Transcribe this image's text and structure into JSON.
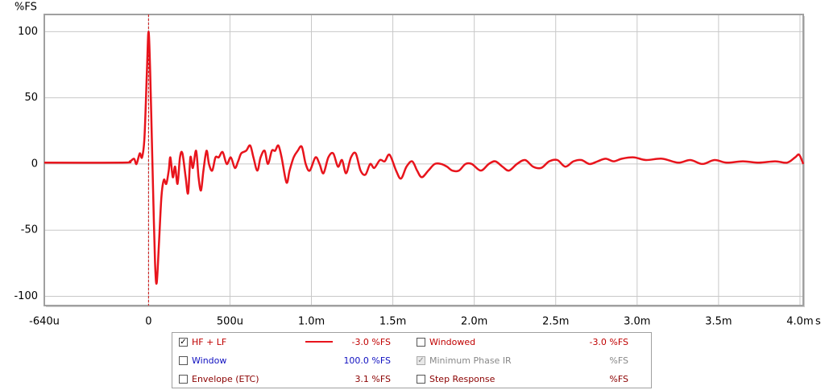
{
  "chart_data": {
    "type": "line",
    "y_label": "%FS",
    "x_unit": "s",
    "xlim": [
      -0.64,
      4.02
    ],
    "ylim": [
      -107,
      113
    ],
    "xticks": [
      {
        "value": -0.64,
        "label": "-640u"
      },
      0,
      {
        "value": 0.5,
        "label": "500u"
      },
      {
        "value": 1,
        "label": "1.0m"
      },
      {
        "value": 1.5,
        "label": "1.5m"
      },
      {
        "value": 2,
        "label": "2.0m"
      },
      {
        "value": 2.5,
        "label": "2.5m"
      },
      {
        "value": 3,
        "label": "3.0m"
      },
      {
        "value": 3.5,
        "label": "3.5m"
      },
      {
        "value": 4,
        "label": "4.0m"
      }
    ],
    "yticks": [
      -100,
      -50,
      0,
      50,
      100
    ],
    "grid": true,
    "cursor_x": 0,
    "cursor_color": "#d01010",
    "series": [
      {
        "name": "HF + LF",
        "color": "#e8141c",
        "x": [
          -0.64,
          -0.163,
          -0.114,
          -0.089,
          -0.074,
          -0.054,
          -0.04,
          -0.025,
          -0.01,
          0,
          0.01,
          0.02,
          0.03,
          0.04,
          0.05,
          0.064,
          0.079,
          0.094,
          0.109,
          0.124,
          0.134,
          0.149,
          0.163,
          0.178,
          0.193,
          0.208,
          0.228,
          0.243,
          0.257,
          0.272,
          0.292,
          0.307,
          0.322,
          0.337,
          0.356,
          0.371,
          0.391,
          0.411,
          0.431,
          0.455,
          0.48,
          0.505,
          0.53,
          0.55,
          0.569,
          0.599,
          0.624,
          0.644,
          0.668,
          0.688,
          0.713,
          0.733,
          0.757,
          0.777,
          0.797,
          0.817,
          0.847,
          0.866,
          0.891,
          0.916,
          0.941,
          0.965,
          0.99,
          1.025,
          1.05,
          1.074,
          1.104,
          1.134,
          1.163,
          1.188,
          1.213,
          1.243,
          1.272,
          1.302,
          1.332,
          1.361,
          1.386,
          1.421,
          1.45,
          1.48,
          1.52,
          1.55,
          1.584,
          1.619,
          1.649,
          1.678,
          1.718,
          1.757,
          1.797,
          1.832,
          1.866,
          1.906,
          1.946,
          1.985,
          2.04,
          2.089,
          2.129,
          2.173,
          2.213,
          2.262,
          2.312,
          2.361,
          2.411,
          2.46,
          2.51,
          2.559,
          2.609,
          2.658,
          2.708,
          2.757,
          2.807,
          2.856,
          2.906,
          2.98,
          3.054,
          3.153,
          3.252,
          3.327,
          3.401,
          3.475,
          3.55,
          3.649,
          3.748,
          3.847,
          3.921,
          3.97,
          3.995,
          4.02
        ],
        "values": [
          1,
          1,
          2,
          4,
          0,
          8,
          5,
          20,
          70,
          100,
          70,
          20,
          -30,
          -75,
          -90,
          -60,
          -25,
          -12,
          -15,
          -5,
          5,
          -10,
          -2,
          -15,
          5,
          8,
          -10,
          -22,
          5,
          -3,
          10,
          -10,
          -20,
          -5,
          10,
          0,
          -5,
          5,
          5,
          9,
          0,
          5,
          -3,
          2,
          8,
          10,
          14,
          5,
          -5,
          5,
          10,
          0,
          10,
          10,
          14,
          5,
          -14,
          -5,
          5,
          10,
          13,
          0,
          -5,
          5,
          0,
          -7,
          5,
          8,
          -2,
          3,
          -7,
          5,
          8,
          -5,
          -8,
          0,
          -3,
          3,
          2,
          7,
          -5,
          -11,
          -2,
          2,
          -5,
          -10,
          -5,
          0,
          0,
          -2,
          -5,
          -5,
          0,
          0,
          -5,
          0,
          2,
          -2,
          -5,
          0,
          3,
          -2,
          -3,
          2,
          3,
          -2,
          2,
          3,
          0,
          2,
          4,
          2,
          4,
          5,
          3,
          4,
          1,
          3,
          0,
          3,
          1,
          2,
          1,
          2,
          1,
          5,
          7,
          0
        ]
      }
    ]
  },
  "legend": {
    "items": [
      {
        "name": "HF + LF",
        "value": "-3.0 %FS",
        "checked": true,
        "enabled": true,
        "color": "#c00000",
        "sample": true
      },
      {
        "name": "Window",
        "value": "100.0 %FS",
        "checked": false,
        "enabled": true,
        "color": "#1010c0",
        "sample": false
      },
      {
        "name": "Envelope (ETC)",
        "value": "3.1 %FS",
        "checked": false,
        "enabled": true,
        "color": "#8b0000",
        "sample": false
      },
      {
        "name": "Windowed",
        "value": "-3.0 %FS",
        "checked": false,
        "enabled": true,
        "color": "#c00000",
        "sample": false
      },
      {
        "name": "Minimum Phase IR",
        "value": "%FS",
        "checked": true,
        "enabled": false,
        "color": "#888888",
        "sample": false
      },
      {
        "name": "Step Response",
        "value": "%FS",
        "checked": false,
        "enabled": true,
        "color": "#8b0000",
        "sample": false
      }
    ]
  }
}
